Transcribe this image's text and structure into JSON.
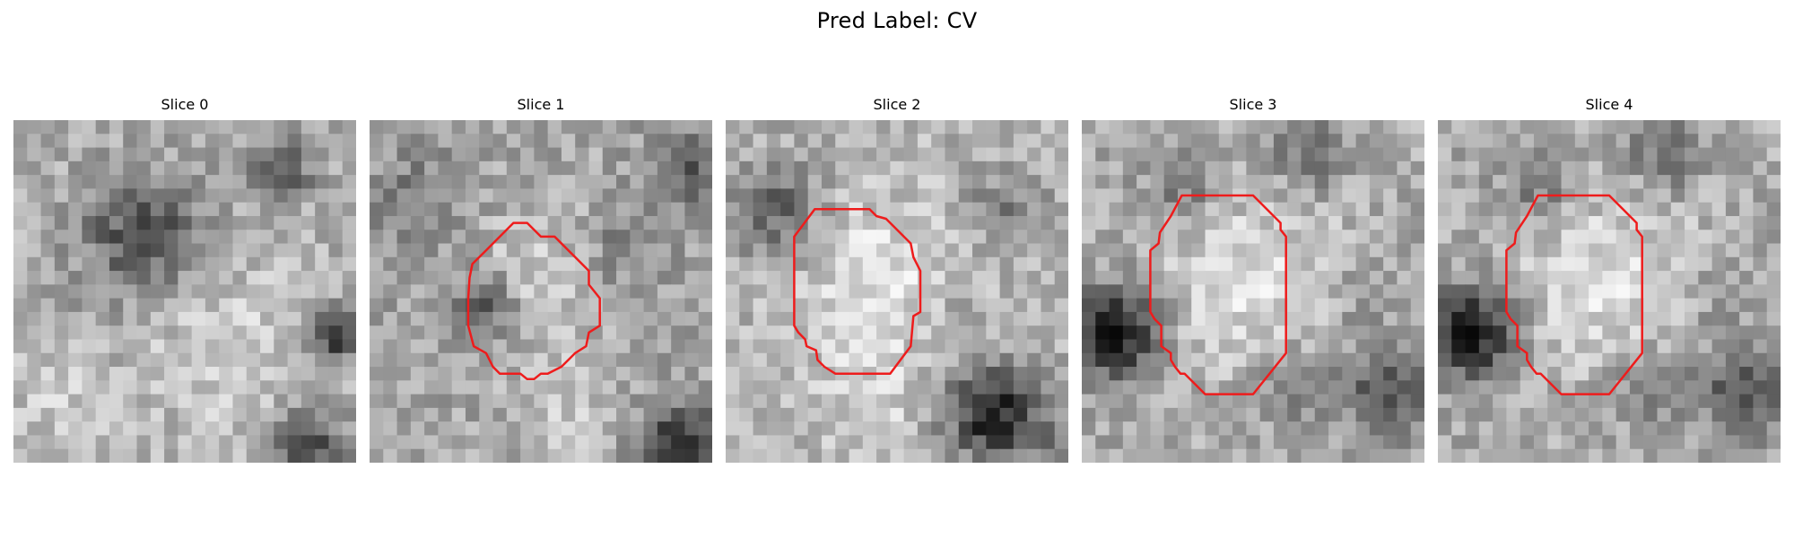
{
  "figure": {
    "title": "Pred Label: CV",
    "panels": [
      {
        "title": "Slice 0",
        "has_contour": false,
        "seed": 11
      },
      {
        "title": "Slice 1",
        "has_contour": true,
        "seed": 23
      },
      {
        "title": "Slice 2",
        "has_contour": true,
        "seed": 37
      },
      {
        "title": "Slice 3",
        "has_contour": true,
        "seed": 51
      },
      {
        "title": "Slice 4",
        "has_contour": true,
        "seed": 51
      }
    ],
    "colormap": "gray",
    "contour_color": "#ee1c1c"
  }
}
